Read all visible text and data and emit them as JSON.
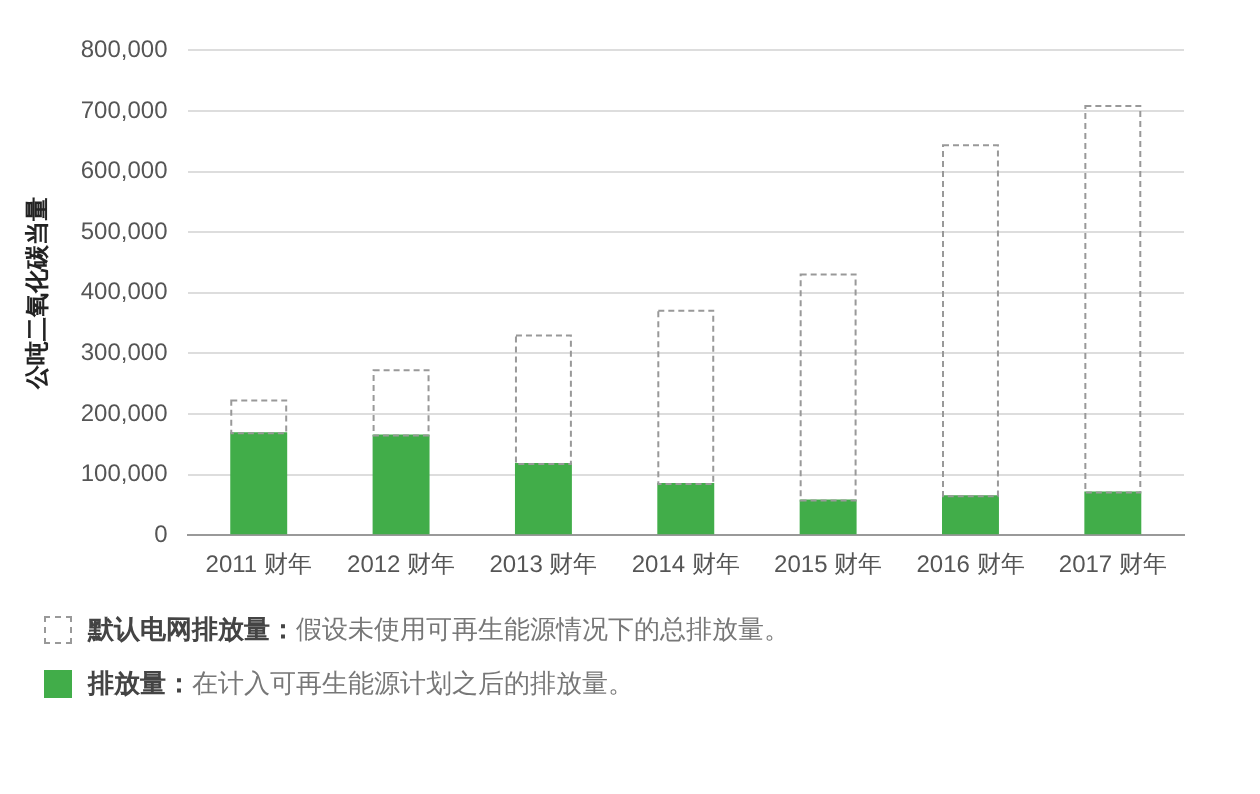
{
  "chart_data": {
    "type": "bar",
    "ylabel": "公吨二氧化碳当量",
    "categories": [
      "2011 财年",
      "2012 财年",
      "2013 财年",
      "2014 财年",
      "2015 财年",
      "2016 财年",
      "2017 财年"
    ],
    "stacked": true,
    "series": [
      {
        "name": "排放量：",
        "color": "#41ad49",
        "values": [
          170000,
          166000,
          119000,
          86000,
          59000,
          66000,
          72000
        ]
      },
      {
        "name": "默认电网排放量：",
        "color": "#999999",
        "line_style": "dashed",
        "values": [
          54000,
          108000,
          212000,
          286000,
          373000,
          579000,
          638000
        ]
      }
    ],
    "ylim": [
      0,
      800000
    ],
    "yticks": [
      0,
      {
        "value": 100000,
        "label": "100,000"
      },
      {
        "value": 200000,
        "label": "200,000"
      },
      {
        "value": 300000,
        "label": "300,000"
      },
      {
        "value": 400000,
        "label": "400,000"
      },
      {
        "value": 500000,
        "label": "500,000"
      },
      {
        "value": 600000,
        "label": "600,000"
      },
      {
        "value": 700000,
        "label": "700,000"
      },
      {
        "value": 800000,
        "label": "800,000"
      }
    ],
    "grid": "y",
    "legend": "bottom",
    "annotations": [
      "在计入可再生能源计划之后的排放量。",
      "假设未使用可再生能源情况下的总排放量。"
    ]
  }
}
